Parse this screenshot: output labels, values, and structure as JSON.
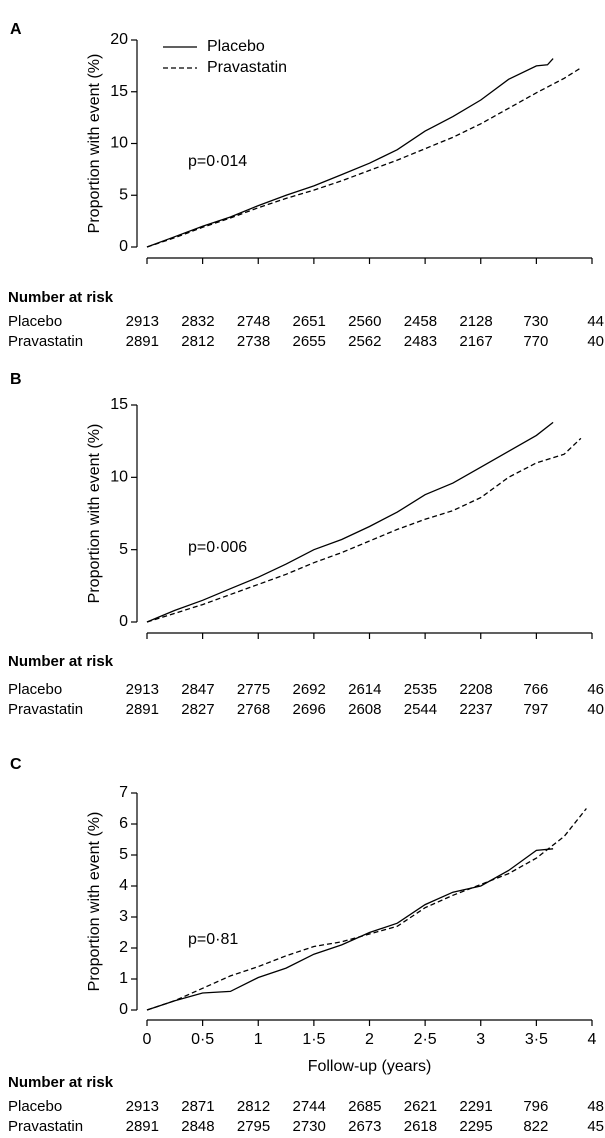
{
  "chart_data": [
    {
      "type": "line",
      "panel": "A",
      "ylabel": "Proportion with event (%)",
      "annotation": "p=0·014",
      "xlim": [
        0,
        4
      ],
      "xticks": [
        0,
        0.5,
        1,
        1.5,
        2,
        2.5,
        3,
        3.5,
        4
      ],
      "show_xtick_labels": false,
      "ylim": [
        0,
        20
      ],
      "yticks": [
        0,
        5,
        10,
        15,
        20
      ],
      "legend": "upper left",
      "series": [
        {
          "name": "Placebo",
          "color": "#000000",
          "dash": false,
          "x": [
            0,
            0.25,
            0.5,
            0.75,
            1,
            1.25,
            1.5,
            1.75,
            2,
            2.25,
            2.5,
            2.75,
            3,
            3.25,
            3.5,
            3.6,
            3.65
          ],
          "values": [
            0,
            1,
            2,
            2.9,
            4,
            5,
            5.9,
            7,
            8.1,
            9.4,
            11.2,
            12.6,
            14.2,
            16.2,
            17.5,
            17.6,
            18.2
          ]
        },
        {
          "name": "Pravastatin",
          "color": "#000000",
          "dash": true,
          "x": [
            0,
            0.25,
            0.5,
            0.75,
            1,
            1.25,
            1.5,
            1.75,
            2,
            2.25,
            2.5,
            2.75,
            3,
            3.25,
            3.5,
            3.75,
            3.9
          ],
          "values": [
            0,
            0.9,
            1.9,
            2.8,
            3.8,
            4.7,
            5.5,
            6.4,
            7.4,
            8.4,
            9.5,
            10.6,
            11.9,
            13.4,
            14.9,
            16.3,
            17.3
          ]
        }
      ],
      "risk_table": {
        "title": "Number at risk",
        "rows": [
          {
            "name": "Placebo",
            "values": [
              2913,
              2832,
              2748,
              2651,
              2560,
              2458,
              2128,
              730,
              44
            ]
          },
          {
            "name": "Pravastatin",
            "values": [
              2891,
              2812,
              2738,
              2655,
              2562,
              2483,
              2167,
              770,
              40
            ]
          }
        ]
      }
    },
    {
      "type": "line",
      "panel": "B",
      "ylabel": "Proportion with event (%)",
      "annotation": "p=0·006",
      "xlim": [
        0,
        4
      ],
      "xticks": [
        0,
        0.5,
        1,
        1.5,
        2,
        2.5,
        3,
        3.5,
        4
      ],
      "show_xtick_labels": false,
      "ylim": [
        0,
        15
      ],
      "yticks": [
        0,
        5,
        10,
        15
      ],
      "series": [
        {
          "color": "#000000",
          "dash": false,
          "x": [
            0,
            0.25,
            0.5,
            0.75,
            1,
            1.25,
            1.5,
            1.75,
            2,
            2.25,
            2.5,
            2.75,
            3,
            3.25,
            3.5,
            3.65
          ],
          "values": [
            0,
            0.8,
            1.5,
            2.3,
            3.1,
            4,
            5,
            5.7,
            6.6,
            7.6,
            8.8,
            9.6,
            10.7,
            11.8,
            12.9,
            13.8
          ]
        },
        {
          "color": "#000000",
          "dash": true,
          "x": [
            0,
            0.25,
            0.5,
            0.75,
            1,
            1.25,
            1.5,
            1.75,
            2,
            2.25,
            2.5,
            2.75,
            3,
            3.25,
            3.5,
            3.75,
            3.9
          ],
          "values": [
            0,
            0.6,
            1.2,
            1.9,
            2.6,
            3.3,
            4.1,
            4.8,
            5.6,
            6.4,
            7.1,
            7.7,
            8.6,
            10,
            11,
            11.6,
            12.7
          ]
        }
      ],
      "risk_table": {
        "title": "Number at risk",
        "rows": [
          {
            "name": "Placebo",
            "values": [
              2913,
              2847,
              2775,
              2692,
              2614,
              2535,
              2208,
              766,
              46
            ]
          },
          {
            "name": "Pravastatin",
            "values": [
              2891,
              2827,
              2768,
              2696,
              2608,
              2544,
              2237,
              797,
              40
            ]
          }
        ]
      }
    },
    {
      "type": "line",
      "panel": "C",
      "ylabel": "Proportion with event (%)",
      "annotation": "p=0·81",
      "xlabel": "Follow-up (years)",
      "xlim": [
        0,
        4
      ],
      "xticks": [
        0,
        {
          "value": 0.5,
          "label": "0·5"
        },
        1,
        {
          "value": 1.5,
          "label": "1·5"
        },
        2,
        {
          "value": 2.5,
          "label": "2·5"
        },
        3,
        {
          "value": 3.5,
          "label": "3·5"
        },
        4
      ],
      "show_xtick_labels": true,
      "ylim": [
        0,
        7
      ],
      "yticks": [
        0,
        1,
        2,
        3,
        4,
        5,
        6,
        7
      ],
      "series": [
        {
          "color": "#000000",
          "dash": false,
          "x": [
            0,
            0.25,
            0.5,
            0.75,
            1,
            1.25,
            1.5,
            1.75,
            2,
            2.25,
            2.5,
            2.75,
            3,
            3.25,
            3.5,
            3.65
          ],
          "values": [
            0,
            0.3,
            0.55,
            0.6,
            1.05,
            1.35,
            1.8,
            2.1,
            2.5,
            2.8,
            3.4,
            3.8,
            4,
            4.5,
            5.15,
            5.2
          ]
        },
        {
          "color": "#000000",
          "dash": true,
          "x": [
            0,
            0.25,
            0.5,
            0.75,
            1,
            1.25,
            1.5,
            1.75,
            2,
            2.25,
            2.5,
            2.75,
            3,
            3.25,
            3.5,
            3.75,
            3.95
          ],
          "values": [
            0,
            0.3,
            0.7,
            1.1,
            1.4,
            1.75,
            2.05,
            2.2,
            2.45,
            2.7,
            3.3,
            3.7,
            4.05,
            4.4,
            4.9,
            5.6,
            6.5
          ]
        }
      ],
      "risk_table": {
        "title": "Number at risk",
        "rows": [
          {
            "name": "Placebo",
            "values": [
              2913,
              2871,
              2812,
              2744,
              2685,
              2621,
              2291,
              796,
              48
            ]
          },
          {
            "name": "Pravastatin",
            "values": [
              2891,
              2848,
              2795,
              2730,
              2673,
              2618,
              2295,
              822,
              45
            ]
          }
        ]
      }
    }
  ]
}
